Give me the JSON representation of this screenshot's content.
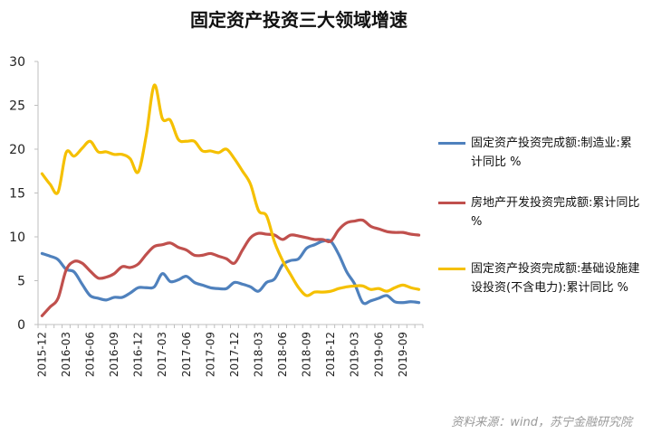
{
  "chart_data": {
    "type": "line",
    "title": "固定资产投资三大领域增速",
    "source_note": "资料来源：wind，苏宁金融研究院",
    "ylim": [
      0,
      30
    ],
    "yticks": [
      0,
      5,
      10,
      15,
      20,
      25,
      30
    ],
    "xlabels_shown": [
      "2015-12",
      "2016-03",
      "2016-06",
      "2016-09",
      "2016-12",
      "2017-03",
      "2017-06",
      "2017-09",
      "2017-12",
      "2018-03",
      "2018-06",
      "2018-09",
      "2018-12",
      "2019-03",
      "2019-06",
      "2019-09"
    ],
    "x": [
      "2015-12",
      "2016-01",
      "2016-02",
      "2016-03",
      "2016-04",
      "2016-05",
      "2016-06",
      "2016-07",
      "2016-08",
      "2016-09",
      "2016-10",
      "2016-11",
      "2016-12",
      "2017-01",
      "2017-02",
      "2017-03",
      "2017-04",
      "2017-05",
      "2017-06",
      "2017-07",
      "2017-08",
      "2017-09",
      "2017-10",
      "2017-11",
      "2017-12",
      "2018-01",
      "2018-02",
      "2018-03",
      "2018-04",
      "2018-05",
      "2018-06",
      "2018-07",
      "2018-08",
      "2018-09",
      "2018-10",
      "2018-11",
      "2018-12",
      "2019-01",
      "2019-02",
      "2019-03",
      "2019-04",
      "2019-05",
      "2019-06",
      "2019-07",
      "2019-08",
      "2019-09",
      "2019-10",
      "2019-11"
    ],
    "grid": false,
    "legend_position": "right",
    "series": [
      {
        "name": "固定资产投资完成额:制造业:累计同比 %",
        "color": "#4F81BD",
        "values": [
          8.1,
          7.8,
          7.4,
          6.3,
          6.0,
          4.6,
          3.3,
          3.0,
          2.8,
          3.1,
          3.1,
          3.6,
          4.2,
          4.2,
          4.3,
          5.8,
          4.9,
          5.1,
          5.5,
          4.8,
          4.5,
          4.2,
          4.1,
          4.1,
          4.8,
          4.6,
          4.3,
          3.8,
          4.8,
          5.2,
          6.8,
          7.3,
          7.5,
          8.7,
          9.1,
          9.5,
          9.5,
          8.0,
          6.0,
          4.6,
          2.5,
          2.7,
          3.0,
          3.3,
          2.6,
          2.5,
          2.6,
          2.5
        ]
      },
      {
        "name": "房地产开发投资完成额:累计同比 %",
        "color": "#C0504D",
        "values": [
          1.0,
          2.0,
          3.0,
          6.2,
          7.2,
          7.0,
          6.1,
          5.3,
          5.4,
          5.8,
          6.6,
          6.5,
          6.9,
          8.0,
          8.9,
          9.1,
          9.3,
          8.8,
          8.5,
          7.9,
          7.9,
          8.1,
          7.8,
          7.5,
          7.0,
          8.5,
          9.9,
          10.4,
          10.3,
          10.2,
          9.7,
          10.2,
          10.1,
          9.9,
          9.7,
          9.7,
          9.5,
          10.8,
          11.6,
          11.8,
          11.9,
          11.2,
          10.9,
          10.6,
          10.5,
          10.5,
          10.3,
          10.2
        ]
      },
      {
        "name": "固定资产投资完成额:基础设施建设投资(不含电力):累计同比 %",
        "color": "#F5C000",
        "values": [
          17.2,
          16.0,
          15.1,
          19.6,
          19.2,
          20.1,
          20.9,
          19.7,
          19.7,
          19.4,
          19.4,
          18.9,
          17.4,
          21.6,
          27.3,
          23.5,
          23.3,
          21.1,
          20.9,
          20.9,
          19.8,
          19.8,
          19.6,
          20.0,
          18.9,
          17.5,
          16.0,
          13.0,
          12.4,
          9.4,
          7.3,
          5.7,
          4.2,
          3.3,
          3.7,
          3.7,
          3.8,
          4.1,
          4.3,
          4.4,
          4.4,
          4.0,
          4.1,
          3.8,
          4.2,
          4.5,
          4.2,
          4.0
        ]
      }
    ]
  }
}
